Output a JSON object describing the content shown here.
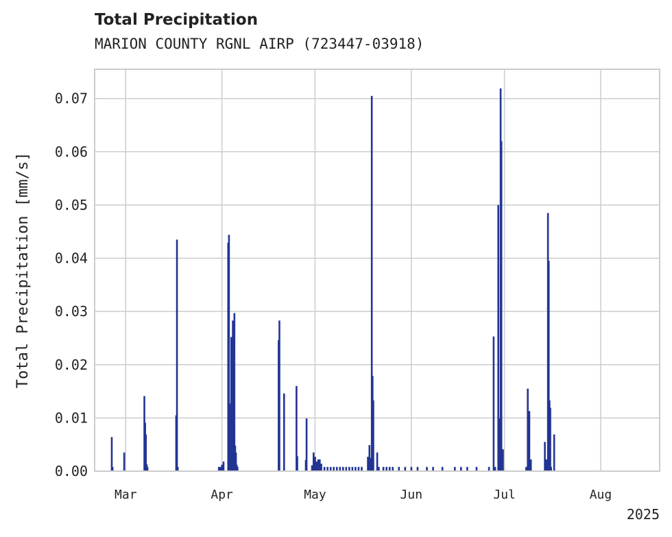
{
  "chart_data": {
    "type": "bar",
    "title": "Total Precipitation",
    "subtitle": "MARION COUNTY RGNL AIRP (723447-03918)",
    "ylabel": "Total Precipitation [mm/s]",
    "xlabel": "",
    "year_label": "2025",
    "ylim": [
      0,
      0.0755
    ],
    "xlim": [
      "2025-02-19",
      "2025-08-20"
    ],
    "y_ticks": [
      0.0,
      0.01,
      0.02,
      0.03,
      0.04,
      0.05,
      0.06,
      0.07
    ],
    "y_tick_labels": [
      "0.00",
      "0.01",
      "0.02",
      "0.03",
      "0.04",
      "0.05",
      "0.06",
      "0.07"
    ],
    "x_ticks": [
      "2025-03-01",
      "2025-04-01",
      "2025-05-01",
      "2025-06-01",
      "2025-07-01",
      "2025-08-01"
    ],
    "x_tick_labels": [
      "Mar",
      "Apr",
      "May",
      "Jun",
      "Jul",
      "Aug"
    ],
    "grid": true,
    "legend": "none",
    "colors": {
      "bar": "#233493",
      "grid": "#cccccc",
      "axis": "#cccccc",
      "text": "#222222"
    },
    "series": [
      {
        "x": [
          "2025-02-24T12:00",
          "2025-02-24T18:00",
          "2025-02-28T12:00",
          "2025-03-07T00:00",
          "2025-03-07T06:00",
          "2025-03-07T12:00",
          "2025-03-07T18:00",
          "2025-03-08T00:00",
          "2025-03-17T06:00",
          "2025-03-17T12:00",
          "2025-03-17T18:00",
          "2025-03-31T00:00",
          "2025-03-31T12:00",
          "2025-04-01T00:00",
          "2025-04-01T12:00",
          "2025-04-03T00:00",
          "2025-04-03T06:00",
          "2025-04-03T12:00",
          "2025-04-03T18:00",
          "2025-04-04T00:00",
          "2025-04-04T06:00",
          "2025-04-04T12:00",
          "2025-04-04T18:00",
          "2025-04-05T00:00",
          "2025-04-05T06:00",
          "2025-04-05T12:00",
          "2025-04-05T18:00",
          "2025-04-06T00:00",
          "2025-04-19T06:00",
          "2025-04-19T12:00",
          "2025-04-21T00:00",
          "2025-04-25T00:00",
          "2025-04-25T06:00",
          "2025-04-28T00:00",
          "2025-04-28T06:00",
          "2025-04-30T00:00",
          "2025-04-30T12:00",
          "2025-05-01T00:00",
          "2025-05-01T12:00",
          "2025-05-02T00:00",
          "2025-05-02T12:00",
          "2025-05-03T00:00",
          "2025-05-04T00:00",
          "2025-05-05T00:00",
          "2025-05-06T00:00",
          "2025-05-07T00:00",
          "2025-05-08T00:00",
          "2025-05-09T00:00",
          "2025-05-10T00:00",
          "2025-05-11T00:00",
          "2025-05-12T00:00",
          "2025-05-13T00:00",
          "2025-05-14T00:00",
          "2025-05-15T00:00",
          "2025-05-16T00:00",
          "2025-05-18T00:00",
          "2025-05-18T12:00",
          "2025-05-19T00:00",
          "2025-05-19T06:00",
          "2025-05-19T12:00",
          "2025-05-19T18:00",
          "2025-05-21T00:00",
          "2025-05-21T12:00",
          "2025-05-23T00:00",
          "2025-05-24T00:00",
          "2025-05-25T00:00",
          "2025-05-26T00:00",
          "2025-05-28T00:00",
          "2025-05-30T00:00",
          "2025-06-01T00:00",
          "2025-06-03T00:00",
          "2025-06-06T00:00",
          "2025-06-08T00:00",
          "2025-06-11T00:00",
          "2025-06-15T00:00",
          "2025-06-17T00:00",
          "2025-06-19T00:00",
          "2025-06-22T00:00",
          "2025-06-26T00:00",
          "2025-06-27T12:00",
          "2025-06-28T00:00",
          "2025-06-29T00:00",
          "2025-06-29T06:00",
          "2025-06-29T12:00",
          "2025-06-29T18:00",
          "2025-06-30T00:00",
          "2025-06-30T12:00",
          "2025-07-08T00:00",
          "2025-07-08T12:00",
          "2025-07-09T00:00",
          "2025-07-09T12:00",
          "2025-07-14T00:00",
          "2025-07-14T12:00",
          "2025-07-15T00:00",
          "2025-07-15T06:00",
          "2025-07-15T12:00",
          "2025-07-15T18:00",
          "2025-07-16T00:00",
          "2025-07-17T00:00"
        ],
        "values": [
          0.0064,
          0.0008,
          0.0035,
          0.0141,
          0.0091,
          0.0069,
          0.0013,
          0.0008,
          0.0105,
          0.0435,
          0.0008,
          0.0008,
          0.0008,
          0.0012,
          0.0018,
          0.0429,
          0.0444,
          0.0052,
          0.0127,
          0.0252,
          0.0111,
          0.0283,
          0.022,
          0.0297,
          0.0048,
          0.0035,
          0.0012,
          0.0008,
          0.0246,
          0.0283,
          0.0146,
          0.016,
          0.0028,
          0.0021,
          0.0099,
          0.0011,
          0.0035,
          0.0027,
          0.0018,
          0.0022,
          0.0022,
          0.0014,
          0.0008,
          0.0008,
          0.0008,
          0.0008,
          0.0008,
          0.0008,
          0.0008,
          0.0008,
          0.0008,
          0.0008,
          0.0008,
          0.0008,
          0.0008,
          0.0027,
          0.0049,
          0.0025,
          0.0705,
          0.0179,
          0.0133,
          0.0035,
          0.0008,
          0.0008,
          0.0008,
          0.0008,
          0.0008,
          0.0008,
          0.0008,
          0.0008,
          0.0008,
          0.0008,
          0.0008,
          0.0008,
          0.0008,
          0.0008,
          0.0008,
          0.0008,
          0.0008,
          0.0253,
          0.0008,
          0.05,
          0.0024,
          0.0099,
          0.0719,
          0.062,
          0.0041,
          0.0008,
          0.0155,
          0.0113,
          0.0022,
          0.0055,
          0.0022,
          0.0485,
          0.0395,
          0.0133,
          0.0119,
          0.0008,
          0.0069
        ]
      }
    ]
  }
}
